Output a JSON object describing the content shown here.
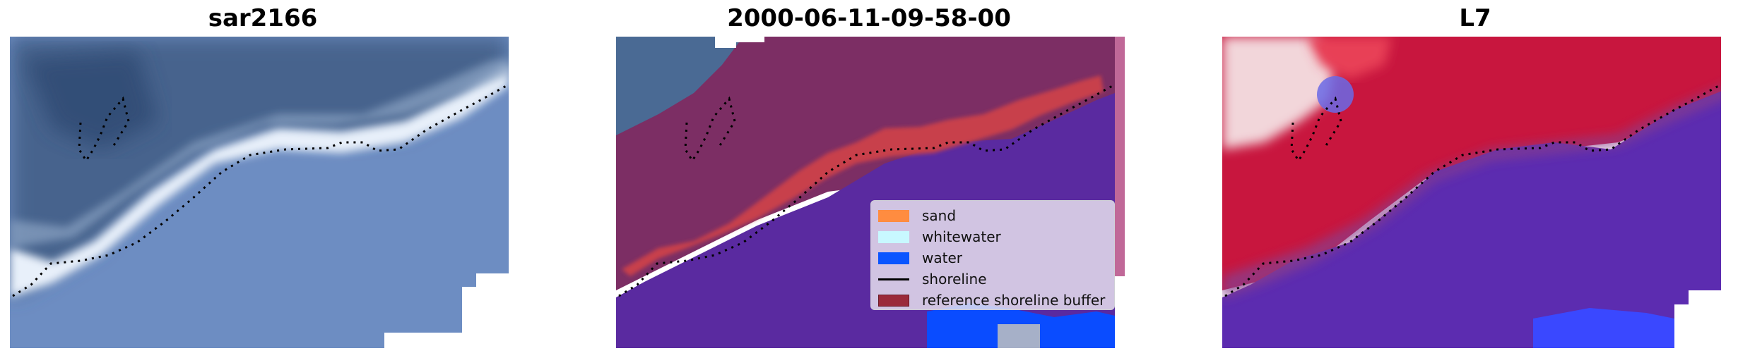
{
  "panels": [
    {
      "title": "sar2166"
    },
    {
      "title": "2000-06-11-09-58-00"
    },
    {
      "title": "L7"
    }
  ],
  "legend": {
    "items": [
      {
        "label": "sand",
        "color": "#ff8c40",
        "kind": "patch"
      },
      {
        "label": "whitewater",
        "color": "#c8f8ff",
        "kind": "patch"
      },
      {
        "label": "water",
        "color": "#0a55ff",
        "kind": "patch"
      },
      {
        "label": "shoreline",
        "color": "#000000",
        "kind": "line"
      },
      {
        "label": "reference shoreline buffer",
        "color": "#9a2a3a",
        "kind": "patch"
      }
    ]
  },
  "colors": {
    "land_rgb": "#3d5d87",
    "surf": "#e6eef8",
    "sea_rgb": "#6285bd",
    "land_class": "#7a2f66",
    "sand_class": "#c24050",
    "water_class": "#5428a0",
    "water_blue": "#0a4cff",
    "mndwi_land": "#c8143c",
    "mndwi_water": "#5a28a8"
  }
}
